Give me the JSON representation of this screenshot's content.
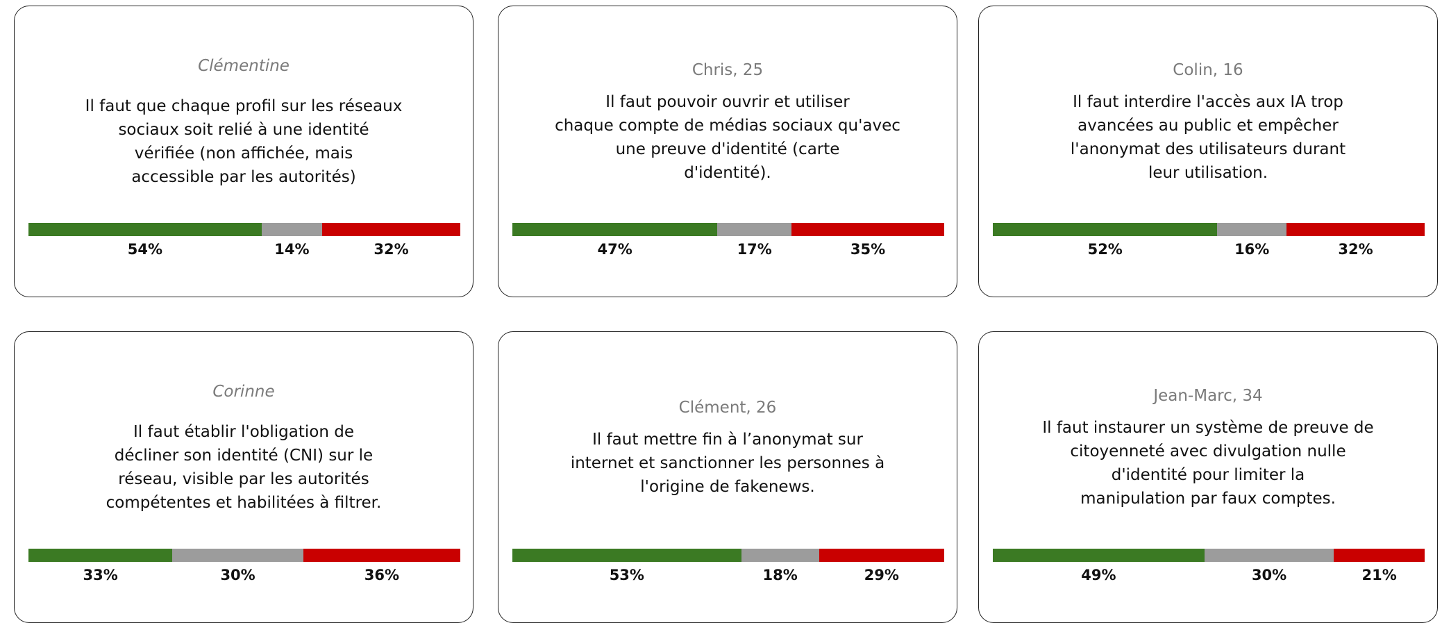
{
  "colors": [
    "#3b7a23",
    "#9c9c9c",
    "#c90000"
  ],
  "cards": [
    {
      "name": "Clémentine",
      "italic": true,
      "lines": [
        "Il faut que chaque profil sur les réseaux",
        "sociaux soit relié à une identité",
        "vérifiée (non affichée, mais",
        "accessible par les autorités)"
      ],
      "values": [
        54,
        14,
        32
      ],
      "value_labels": [
        "54%",
        "14%",
        "32%"
      ]
    },
    {
      "name": "Chris, 25",
      "italic": false,
      "lines": [
        "Il faut pouvoir ouvrir et utiliser",
        "chaque compte de médias sociaux qu'avec",
        "une preuve d'identité (carte",
        "d'identité)."
      ],
      "values": [
        47,
        17,
        35
      ],
      "value_labels": [
        "47%",
        "17%",
        "35%"
      ]
    },
    {
      "name": "Colin, 16",
      "italic": false,
      "lines": [
        "Il faut interdire l'accès aux IA trop",
        "avancées au public et empêcher",
        "l'anonymat des utilisateurs durant",
        "leur utilisation."
      ],
      "values": [
        52,
        16,
        32
      ],
      "value_labels": [
        "52%",
        "16%",
        "32%"
      ]
    },
    {
      "name": "Corinne",
      "italic": true,
      "lines": [
        "Il faut établir l'obligation de",
        "décliner son identité (CNI) sur le",
        "réseau, visible par les autorités",
        "compétentes et habilitées à filtrer."
      ],
      "values": [
        33,
        30,
        36
      ],
      "value_labels": [
        "33%",
        "30%",
        "36%"
      ]
    },
    {
      "name": "Clément, 26",
      "italic": false,
      "lines": [
        "Il faut mettre fin à l’anonymat sur",
        "internet et sanctionner les personnes à",
        "l'origine de fakenews."
      ],
      "values": [
        53,
        18,
        29
      ],
      "value_labels": [
        "53%",
        "18%",
        "29%"
      ]
    },
    {
      "name": "Jean-Marc, 34",
      "italic": false,
      "lines": [
        "Il faut instaurer un système de preuve de",
        "citoyenneté avec divulgation nulle",
        "d'identité pour limiter la",
        "manipulation par faux comptes."
      ],
      "values": [
        49,
        30,
        21
      ],
      "value_labels": [
        "49%",
        "30%",
        "21%"
      ]
    }
  ]
}
